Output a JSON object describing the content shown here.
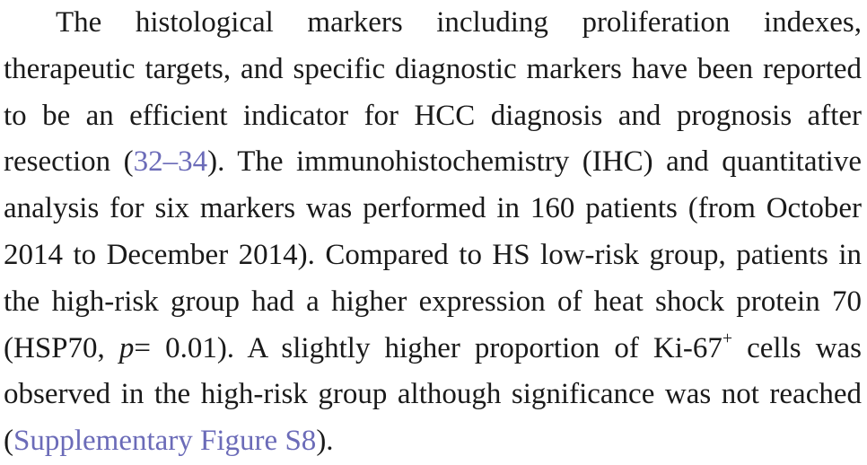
{
  "paragraph": {
    "seg1": "The histological markers including proliferation indexes, therapeutic targets, and specific diagnostic markers have been reported to be an efficient indicator for HCC diagnosis and prognosis after resection (",
    "ref_32_34": "32–34",
    "seg2": "). The immunohistochemistry (IHC) and quantitative analysis for six markers was performed in 160 patients (from October 2014 to December 2014). Compared to HS low-risk group, patients in the high-risk group had a higher expression of heat shock protein 70 (HSP70, ",
    "p_symbol": "p",
    "seg3": "= 0.01). A slightly higher proportion of Ki-67",
    "superscript": "+",
    "seg4": " cells was observed in the high-risk group although significance was not reached (",
    "supp_figure_link": "Supplementary Figure S8",
    "seg5": ")."
  },
  "colors": {
    "text": "#1a1a1a",
    "link": "#6b6bb8",
    "background": "#ffffff"
  }
}
